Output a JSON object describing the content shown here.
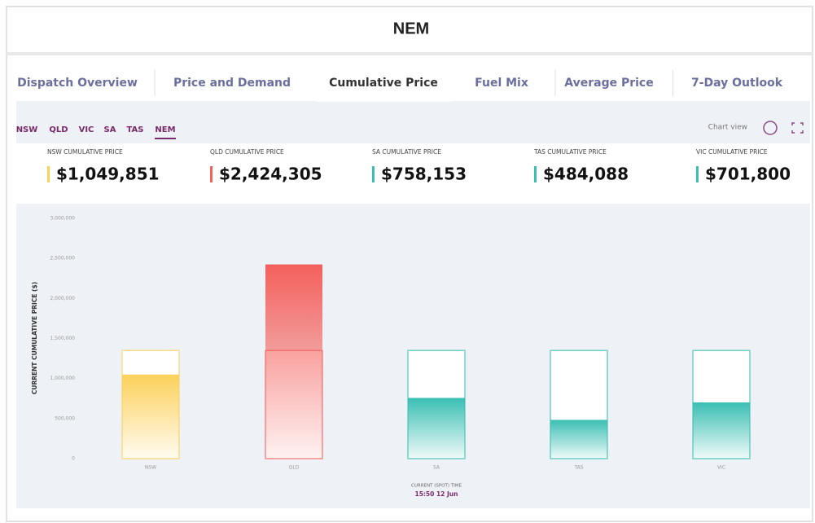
{
  "header": {
    "title": "NEM"
  },
  "tabs": {
    "items": [
      "Dispatch Overview",
      "Price and Demand",
      "Cumulative Price",
      "Fuel Mix",
      "Average Price",
      "7-Day Outlook"
    ],
    "active": "Cumulative Price"
  },
  "regions": {
    "items": [
      "NSW",
      "QLD",
      "VIC",
      "SA",
      "TAS",
      "NEM"
    ],
    "active": "NEM"
  },
  "toolbar": {
    "view": "Chart view"
  },
  "cards": [
    {
      "label": "NSW CUMULATIVE PRICE",
      "value": "$1,049,851",
      "color": "#fcd15a"
    },
    {
      "label": "QLD CUMULATIVE PRICE",
      "value": "$2,424,305",
      "color": "#f4605c"
    },
    {
      "label": "SA CUMULATIVE PRICE",
      "value": "$758,153",
      "color": "#3bbfb3"
    },
    {
      "label": "TAS CUMULATIVE PRICE",
      "value": "$484,088",
      "color": "#3bbfb3"
    },
    {
      "label": "VIC CUMULATIVE PRICE",
      "value": "$701,800",
      "color": "#3bbfb3"
    }
  ],
  "chart_data": {
    "type": "bar",
    "ylabel": "CURRENT CUMULATIVE PRICE ($)",
    "categories": [
      "NSW",
      "QLD",
      "SA",
      "TAS",
      "VIC"
    ],
    "values": [
      1049851,
      2424305,
      758153,
      484088,
      701800
    ],
    "colors": [
      "#fcd15a",
      "#f4605c",
      "#3bbfb3",
      "#3bbfb3",
      "#3bbfb3"
    ],
    "threshold": 1350000,
    "ylim": [
      0,
      3000000
    ],
    "yticks": [
      0,
      {
        "value": 500000,
        "label": "500,000"
      },
      {
        "value": 1000000,
        "label": "1,000,000"
      },
      {
        "value": 1500000,
        "label": "1,500,000"
      },
      {
        "value": 2000000,
        "label": "2,000,000"
      },
      {
        "value": 2500000,
        "label": "2,500,000"
      },
      {
        "value": 3000000,
        "label": "3,000,000"
      }
    ],
    "xlabel": "CURRENT (SPOT) TIME",
    "time": "15:50 12 Jun"
  }
}
